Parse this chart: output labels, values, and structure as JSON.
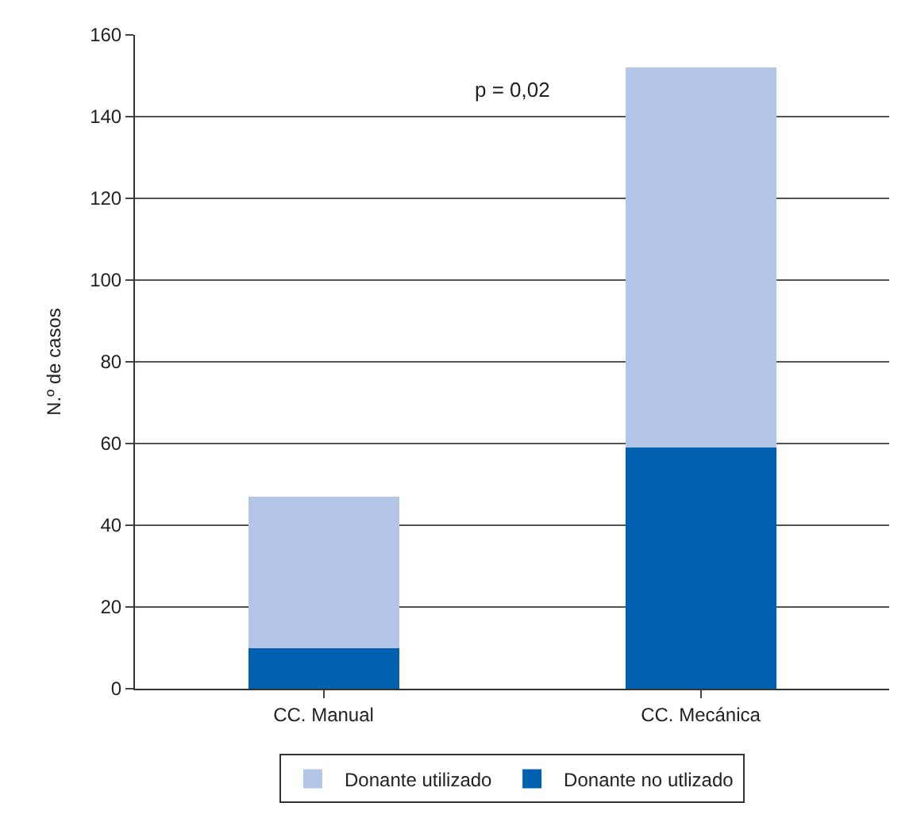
{
  "chart_data": {
    "type": "bar",
    "ylabel": "N.º de casos",
    "categories": [
      "CC. Manual",
      "CC. Mecánica"
    ],
    "stacked": true,
    "series": [
      {
        "name": "Donante no utlizado",
        "color": "#0060b0",
        "values": [
          10,
          59
        ]
      },
      {
        "name": "Donante utilizado",
        "color": "#b4c6e7",
        "values": [
          37,
          93
        ]
      }
    ],
    "ylim": [
      0,
      160
    ],
    "yticks": [
      0,
      20,
      40,
      60,
      80,
      100,
      120,
      140,
      160
    ],
    "grid": "y",
    "legend": "bottom",
    "annotations": [
      "p = 0,02"
    ]
  }
}
